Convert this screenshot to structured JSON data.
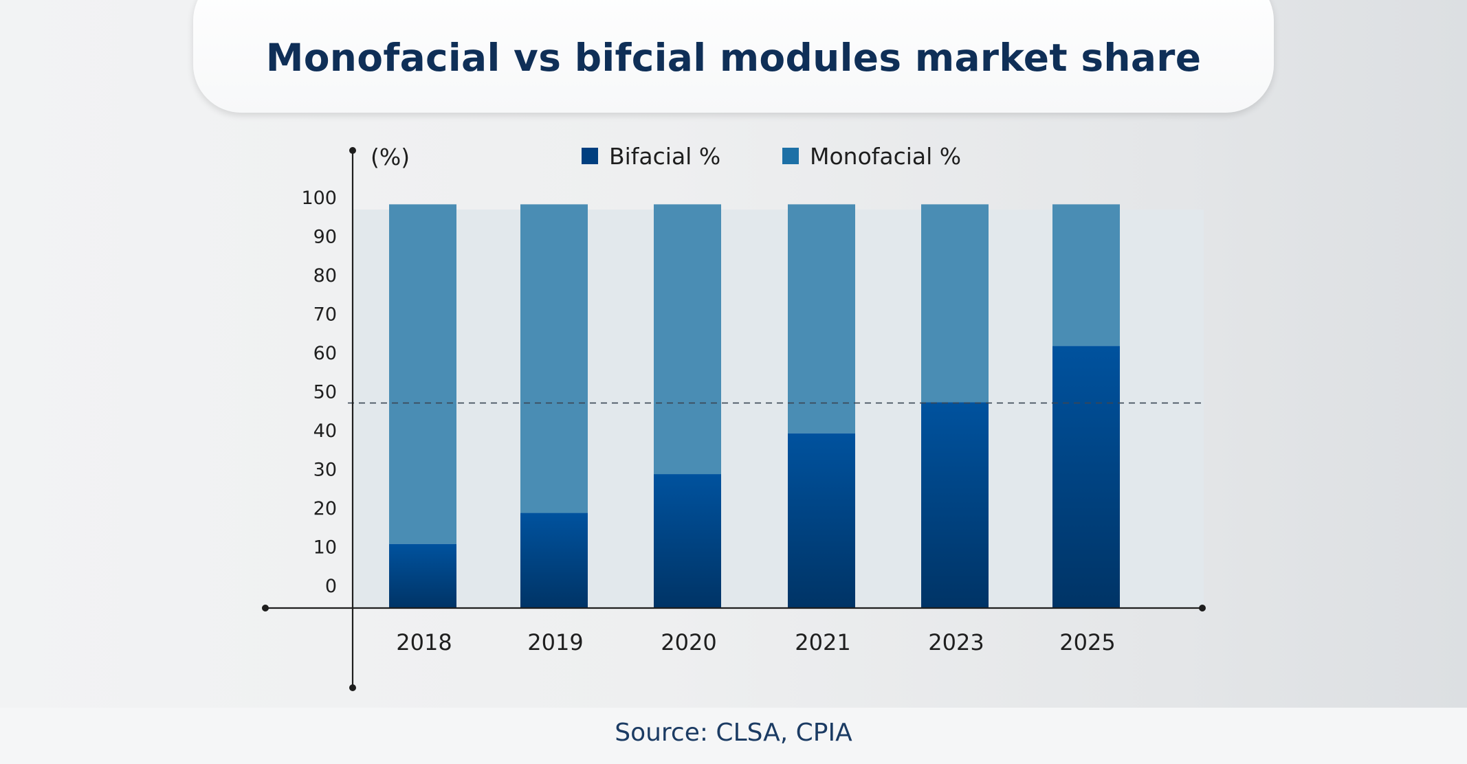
{
  "title": "Monofacial vs bifcial modules market share",
  "source": "Source: CLSA, CPIA",
  "colors": {
    "bifacial_top": "#00529e",
    "bifacial_bottom": "#003466",
    "monofacial": "#4a8db4",
    "legend_bifacial": "#003f7f",
    "legend_monofacial": "#1d70a6",
    "plot_bg": "#e2e8ec",
    "axis": "#1e1e1e",
    "title_text": "#0f2f57"
  },
  "chart_data": {
    "type": "bar",
    "stacked": true,
    "categories": [
      "2018",
      "2019",
      "2020",
      "2021",
      "2023",
      "2025"
    ],
    "series": [
      {
        "name": "Bifacial %",
        "values": [
          13.5,
          21.5,
          31.5,
          42,
          50,
          64.5
        ]
      },
      {
        "name": "Monofacial %",
        "values": [
          87.5,
          79.5,
          69.5,
          59,
          51,
          36.5
        ]
      }
    ],
    "ylabel": "(%)",
    "xlabel": "",
    "ylim": [
      -3,
      100
    ],
    "yticks": [
      0,
      10,
      20,
      30,
      40,
      50,
      60,
      70,
      80,
      90,
      100
    ],
    "reference_line": 50,
    "legend_position": "top-center"
  }
}
